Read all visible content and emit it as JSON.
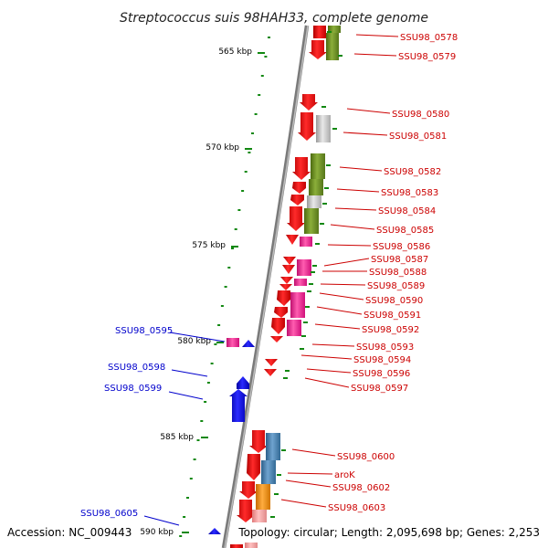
{
  "title": "Streptococcus suis 98HAH33, complete genome",
  "accession": "Accession: NC_009443",
  "summary": "Topology: circular; Length: 2,095,698 bp; Genes: 2,253",
  "scale_labels": [
    "565 kbp",
    "570 kbp",
    "575 kbp",
    "580 kbp",
    "585 kbp",
    "590 kbp"
  ],
  "right_genes": [
    "SSU98_0578",
    "SSU98_0579",
    "SSU98_0580",
    "SSU98_0581",
    "SSU98_0582",
    "SSU98_0583",
    "SSU98_0584",
    "SSU98_0585",
    "SSU98_0586",
    "SSU98_0587",
    "SSU98_0588",
    "SSU98_0589",
    "SSU98_0590",
    "SSU98_0591",
    "SSU98_0592",
    "SSU98_0593",
    "SSU98_0594",
    "SSU98_0596",
    "SSU98_0597",
    "SSU98_0600",
    "aroK",
    "SSU98_0602",
    "SSU98_0603"
  ],
  "left_genes": [
    "SSU98_0595",
    "SSU98_0598",
    "SSU98_0599",
    "SSU98_0605"
  ],
  "colors": {
    "forward_strand": "#ff0000",
    "cog_green": "#6b8e23",
    "cog_gray": "#bbbbbb",
    "cog_pink": "#ff1493",
    "cog_blue": "#4682b4",
    "cog_orange": "#ff8c00",
    "reverse_strand": "#0000ff",
    "tick": "#118811",
    "backbone": "#888888"
  }
}
